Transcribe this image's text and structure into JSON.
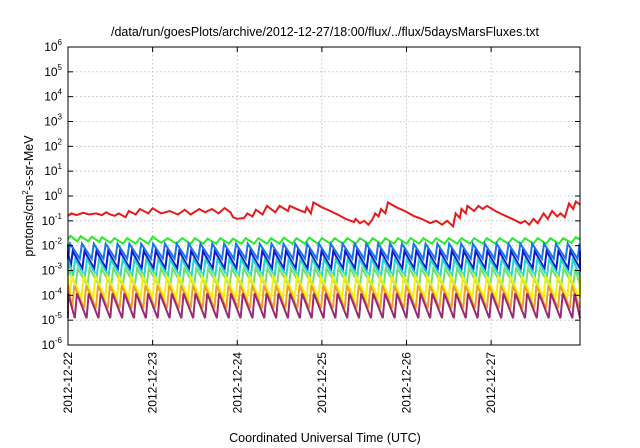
{
  "chart_data": {
    "type": "line",
    "title": "/data/run/goesPlots/archive/2012-12-27/18:00/flux/../flux/5daysMarsFluxes.txt",
    "xlabel": "Coordinated Universal Time (UTC)",
    "ylabel_base": "protons/cm",
    "ylabel_sup": "2",
    "ylabel_rest": "-s-sr-MeV",
    "yscale": "log",
    "ylim_exp": [
      -6,
      6
    ],
    "ytick_exponents": [
      -6,
      -5,
      -4,
      -3,
      -2,
      -1,
      0,
      1,
      2,
      3,
      4,
      5,
      6
    ],
    "ytick_base": "10",
    "xlim_days": [
      0,
      6.05
    ],
    "xticks": [
      {
        "label": "2012-12-22",
        "day": 0
      },
      {
        "label": "2012-12-23",
        "day": 1
      },
      {
        "label": "2012-12-24",
        "day": 2
      },
      {
        "label": "2012-12-25",
        "day": 3
      },
      {
        "label": "2012-12-26",
        "day": 4
      },
      {
        "label": "2012-12-27",
        "day": 5
      }
    ],
    "grid": true,
    "series": [
      {
        "color": "#e41a1c",
        "points": [
          [
            0,
            0.16
          ],
          [
            0.04,
            0.2
          ],
          [
            0.1,
            0.17
          ],
          [
            0.18,
            0.21
          ],
          [
            0.25,
            0.18
          ],
          [
            0.33,
            0.2
          ],
          [
            0.4,
            0.17
          ],
          [
            0.45,
            0.22
          ],
          [
            0.5,
            0.18
          ],
          [
            0.55,
            0.16
          ],
          [
            0.6,
            0.2
          ],
          [
            0.68,
            0.14
          ],
          [
            0.72,
            0.25
          ],
          [
            0.8,
            0.18
          ],
          [
            0.85,
            0.3
          ],
          [
            0.95,
            0.2
          ],
          [
            1.0,
            0.32
          ],
          [
            1.1,
            0.2
          ],
          [
            1.2,
            0.25
          ],
          [
            1.3,
            0.18
          ],
          [
            1.38,
            0.28
          ],
          [
            1.45,
            0.18
          ],
          [
            1.55,
            0.3
          ],
          [
            1.62,
            0.22
          ],
          [
            1.7,
            0.3
          ],
          [
            1.78,
            0.2
          ],
          [
            1.85,
            0.33
          ],
          [
            1.92,
            0.22
          ],
          [
            1.95,
            0.14
          ],
          [
            2.0,
            0.12
          ],
          [
            2.08,
            0.13
          ],
          [
            2.12,
            0.2
          ],
          [
            2.18,
            0.15
          ],
          [
            2.22,
            0.28
          ],
          [
            2.3,
            0.18
          ],
          [
            2.35,
            0.4
          ],
          [
            2.45,
            0.22
          ],
          [
            2.5,
            0.4
          ],
          [
            2.6,
            0.25
          ],
          [
            2.62,
            0.4
          ],
          [
            2.72,
            0.28
          ],
          [
            2.8,
            0.22
          ],
          [
            2.82,
            0.35
          ],
          [
            2.87,
            0.2
          ],
          [
            2.9,
            0.55
          ],
          [
            3.0,
            0.35
          ],
          [
            3.1,
            0.25
          ],
          [
            3.2,
            0.17
          ],
          [
            3.28,
            0.12
          ],
          [
            3.38,
            0.09
          ],
          [
            3.4,
            0.12
          ],
          [
            3.45,
            0.08
          ],
          [
            3.5,
            0.1
          ],
          [
            3.55,
            0.07
          ],
          [
            3.6,
            0.12
          ],
          [
            3.63,
            0.2
          ],
          [
            3.67,
            0.15
          ],
          [
            3.7,
            0.3
          ],
          [
            3.75,
            0.2
          ],
          [
            3.78,
            0.55
          ],
          [
            3.88,
            0.35
          ],
          [
            3.98,
            0.25
          ],
          [
            4.08,
            0.16
          ],
          [
            4.18,
            0.12
          ],
          [
            4.28,
            0.08
          ],
          [
            4.35,
            0.1
          ],
          [
            4.42,
            0.07
          ],
          [
            4.48,
            0.1
          ],
          [
            4.55,
            0.06
          ],
          [
            4.58,
            0.2
          ],
          [
            4.63,
            0.13
          ],
          [
            4.65,
            0.3
          ],
          [
            4.7,
            0.2
          ],
          [
            4.72,
            0.4
          ],
          [
            4.8,
            0.25
          ],
          [
            4.85,
            0.4
          ],
          [
            4.9,
            0.3
          ],
          [
            4.95,
            0.4
          ],
          [
            5.05,
            0.25
          ],
          [
            5.15,
            0.17
          ],
          [
            5.25,
            0.12
          ],
          [
            5.35,
            0.08
          ],
          [
            5.4,
            0.1
          ],
          [
            5.45,
            0.07
          ],
          [
            5.5,
            0.12
          ],
          [
            5.55,
            0.08
          ],
          [
            5.62,
            0.2
          ],
          [
            5.67,
            0.12
          ],
          [
            5.72,
            0.25
          ],
          [
            5.78,
            0.15
          ],
          [
            5.82,
            0.2
          ],
          [
            5.87,
            0.14
          ],
          [
            5.92,
            0.5
          ],
          [
            5.97,
            0.3
          ],
          [
            6.0,
            0.6
          ],
          [
            6.05,
            0.45
          ]
        ]
      },
      {
        "color": "#22ee22",
        "points": [
          [
            0,
            0.018
          ],
          [
            0.03,
            0.025
          ],
          [
            0.11,
            0.015
          ],
          [
            0.15,
            0.024
          ],
          [
            0.24,
            0.015
          ],
          [
            0.28,
            0.023
          ],
          [
            0.37,
            0.014
          ],
          [
            0.4,
            0.022
          ],
          [
            0.5,
            0.013
          ],
          [
            0.55,
            0.02
          ],
          [
            0.65,
            0.012
          ],
          [
            0.7,
            0.02
          ],
          [
            0.8,
            0.012
          ],
          [
            0.85,
            0.02
          ],
          [
            0.95,
            0.012
          ],
          [
            1.0,
            0.023
          ],
          [
            1.1,
            0.013
          ],
          [
            1.18,
            0.02
          ],
          [
            1.28,
            0.012
          ],
          [
            1.35,
            0.02
          ],
          [
            1.45,
            0.012
          ],
          [
            1.5,
            0.02
          ],
          [
            1.6,
            0.012
          ],
          [
            1.65,
            0.019
          ],
          [
            1.75,
            0.012
          ],
          [
            1.8,
            0.02
          ],
          [
            1.9,
            0.012
          ],
          [
            1.95,
            0.019
          ],
          [
            2.05,
            0.012
          ],
          [
            2.1,
            0.02
          ],
          [
            2.2,
            0.012
          ],
          [
            2.25,
            0.02
          ],
          [
            2.35,
            0.012
          ],
          [
            2.4,
            0.02
          ],
          [
            2.5,
            0.012
          ],
          [
            2.55,
            0.021
          ],
          [
            2.65,
            0.012
          ],
          [
            2.7,
            0.02
          ],
          [
            2.8,
            0.012
          ],
          [
            2.85,
            0.021
          ],
          [
            2.95,
            0.012
          ],
          [
            3.0,
            0.02
          ],
          [
            3.1,
            0.012
          ],
          [
            3.15,
            0.02
          ],
          [
            3.25,
            0.012
          ],
          [
            3.3,
            0.02
          ],
          [
            3.4,
            0.012
          ],
          [
            3.45,
            0.02
          ],
          [
            3.55,
            0.012
          ],
          [
            3.6,
            0.02
          ],
          [
            3.7,
            0.012
          ],
          [
            3.75,
            0.02
          ],
          [
            3.85,
            0.012
          ],
          [
            3.9,
            0.02
          ],
          [
            4.0,
            0.012
          ],
          [
            4.05,
            0.02
          ],
          [
            4.15,
            0.012
          ],
          [
            4.2,
            0.02
          ],
          [
            4.3,
            0.012
          ],
          [
            4.35,
            0.02
          ],
          [
            4.45,
            0.012
          ],
          [
            4.5,
            0.02
          ],
          [
            4.6,
            0.012
          ],
          [
            4.65,
            0.02
          ],
          [
            4.75,
            0.012
          ],
          [
            4.8,
            0.02
          ],
          [
            4.9,
            0.012
          ],
          [
            4.95,
            0.02
          ],
          [
            5.05,
            0.012
          ],
          [
            5.1,
            0.02
          ],
          [
            5.2,
            0.012
          ],
          [
            5.25,
            0.02
          ],
          [
            5.35,
            0.012
          ],
          [
            5.4,
            0.02
          ],
          [
            5.5,
            0.012
          ],
          [
            5.55,
            0.02
          ],
          [
            5.65,
            0.012
          ],
          [
            5.7,
            0.02
          ],
          [
            5.8,
            0.012
          ],
          [
            5.85,
            0.02
          ],
          [
            5.95,
            0.013
          ],
          [
            6.0,
            0.022
          ],
          [
            6.05,
            0.018
          ]
        ]
      },
      {
        "color": "#1c74e8",
        "period": 0.14,
        "phase": 0.0,
        "hi": 0.012,
        "lo": 0.003
      },
      {
        "color": "#0a1ccc",
        "period": 0.14,
        "phase": 0.03,
        "hi": 0.006,
        "lo": 0.0012
      },
      {
        "color": "#22d6d0",
        "period": 0.14,
        "phase": 0.06,
        "hi": 0.0028,
        "lo": 0.0006
      },
      {
        "color": "#6fe06f",
        "period": 0.14,
        "phase": 0.09,
        "hi": 0.0012,
        "lo": 0.00025
      },
      {
        "color": "#f2f20a",
        "period": 0.14,
        "phase": 0.02,
        "hi": 0.0006,
        "lo": 8e-05
      },
      {
        "color": "#f0a020",
        "period": 0.14,
        "phase": 0.05,
        "hi": 0.00025,
        "lo": 3e-05
      },
      {
        "color": "#9c2a70",
        "period": 0.14,
        "phase": 0.08,
        "hi": 0.00012,
        "lo": 1.2e-05
      }
    ]
  }
}
